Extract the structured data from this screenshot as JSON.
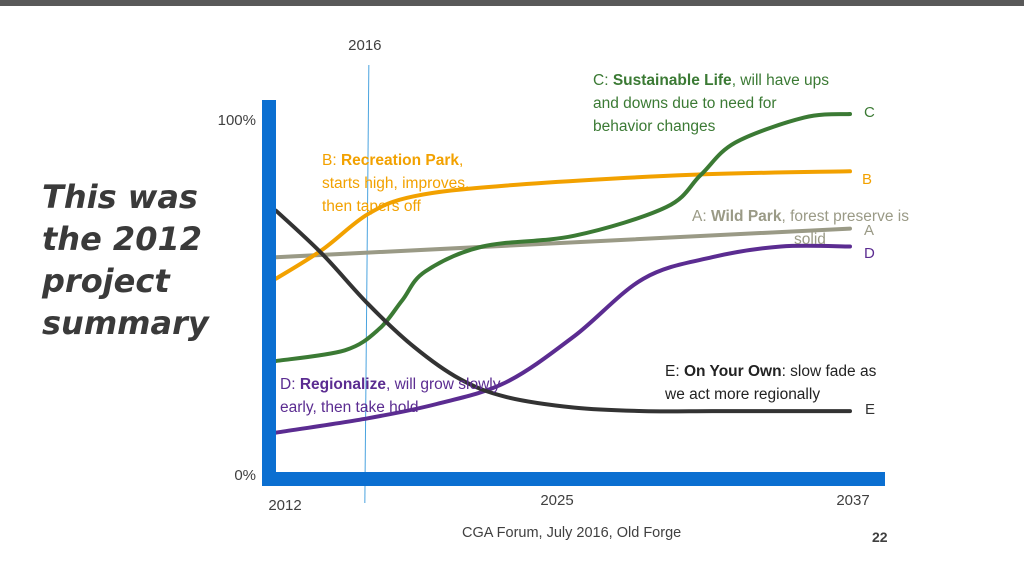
{
  "slide": {
    "title": "This was\nthe 2012\nproject\nsummary",
    "footer": "CGA Forum, July 2016, Old Forge",
    "page_number": "22"
  },
  "colors": {
    "axis": "#0b6fd1",
    "marker": "#4aa3df",
    "A": "#9a9a86",
    "B": "#f2a100",
    "C": "#3b7a34",
    "D": "#5b2c91",
    "E": "#333333"
  },
  "annotations": {
    "A": {
      "prefix": "A: ",
      "name": "Wild Park",
      "rest": ", forest preserve is",
      "rest2": "solid"
    },
    "B": {
      "prefix": "B: ",
      "name": "Recreation Park",
      "rest": ",",
      "lines": [
        "starts high, improves,",
        "then tapers off"
      ]
    },
    "C": {
      "prefix": "C: ",
      "name": "Sustainable Life",
      "rest": ", will have ups",
      "lines": [
        "and downs due to need for",
        "behavior changes"
      ]
    },
    "D": {
      "prefix": "D: ",
      "name": "Regionalize",
      "rest": ", will grow slowly",
      "lines": [
        "early, then take hold"
      ]
    },
    "E": {
      "prefix": "E: ",
      "name": "On Your Own",
      "rest": ":  slow fade as",
      "lines": [
        "we act more regionally"
      ]
    }
  },
  "chart_data": {
    "type": "line",
    "title": "",
    "xlabel": "",
    "ylabel": "",
    "x_ticks": [
      "2012",
      "2025",
      "2037"
    ],
    "y_ticks": [
      "0%",
      "100%"
    ],
    "xlim": [
      2012,
      2037
    ],
    "ylim": [
      0,
      100
    ],
    "marker": {
      "x": 2016,
      "label": "2016"
    },
    "series": [
      {
        "name": "A",
        "x": [
          2012,
          2037
        ],
        "y": [
          60,
          68
        ]
      },
      {
        "name": "B",
        "x": [
          2012,
          2014,
          2016,
          2018,
          2022,
          2030,
          2037
        ],
        "y": [
          54,
          62,
          72,
          77,
          80,
          83,
          84
        ]
      },
      {
        "name": "C",
        "x": [
          2012,
          2015,
          2016.5,
          2017.5,
          2018.5,
          2021,
          2025,
          2029,
          2030.5,
          2032,
          2035,
          2037
        ],
        "y": [
          31,
          34,
          40,
          48,
          56,
          63,
          66,
          74,
          83,
          92,
          99,
          100
        ]
      },
      {
        "name": "D",
        "x": [
          2012,
          2016,
          2019,
          2022,
          2025,
          2028,
          2031,
          2034,
          2037
        ],
        "y": [
          11,
          15,
          19,
          25,
          38,
          54,
          60,
          63,
          63
        ]
      },
      {
        "name": "E",
        "x": [
          2012,
          2014,
          2016,
          2018,
          2020,
          2022,
          2025,
          2028,
          2031,
          2034,
          2037
        ],
        "y": [
          73,
          61,
          47,
          35,
          26,
          21,
          18,
          17,
          17,
          17,
          17
        ]
      }
    ]
  }
}
